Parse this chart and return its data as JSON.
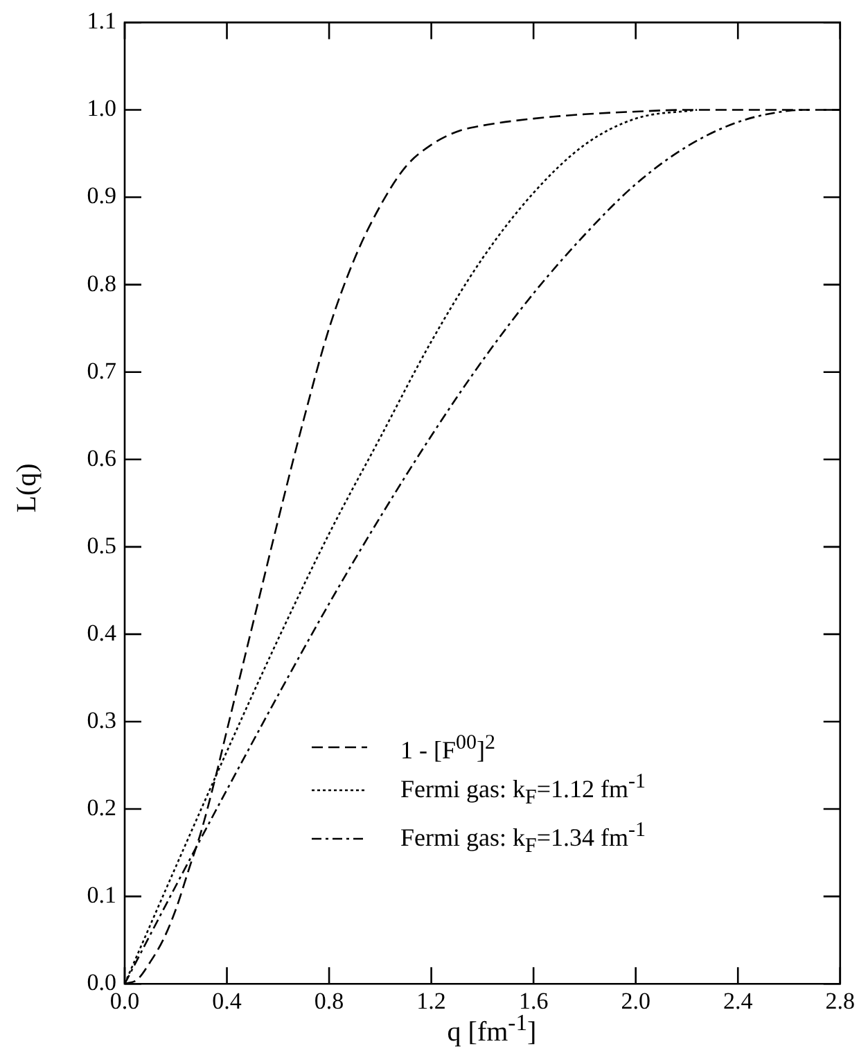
{
  "chart_data": {
    "type": "line",
    "xlabel": "q [fm$^{-1}$]",
    "ylabel": "L(q)",
    "xlim": [
      0,
      2.8
    ],
    "xticks": [
      {
        "value": 0,
        "label": "0.0"
      },
      0.4,
      0.8,
      1.2,
      1.6,
      {
        "value": 2,
        "label": "2.0"
      },
      2.4,
      2.8
    ],
    "ylim": [
      0,
      1.1
    ],
    "yticks": [
      {
        "value": 0,
        "label": "0.0"
      },
      0.1,
      0.2,
      0.3,
      0.4,
      0.5,
      0.6,
      0.7,
      0.8,
      0.9,
      {
        "value": 1,
        "label": "1.0"
      },
      1.1
    ],
    "grid": false,
    "legend": "bottom right",
    "marker": "none",
    "series": [
      {
        "name": "1 - [F$^{00}$]$^{2}$",
        "color": "#000000",
        "line_style": "dashed",
        "x": [
          0,
          0.05,
          0.1,
          0.15,
          0.2,
          0.25,
          0.3,
          0.35,
          0.4,
          0.5,
          0.6,
          0.7,
          0.8,
          0.9,
          1.0,
          1.1,
          1.2,
          1.3,
          1.4,
          1.6,
          1.8,
          2.0,
          2.2,
          2.8
        ],
        "values": [
          0,
          0.005,
          0.025,
          0.05,
          0.085,
          0.13,
          0.175,
          0.23,
          0.29,
          0.41,
          0.53,
          0.645,
          0.75,
          0.83,
          0.89,
          0.935,
          0.96,
          0.975,
          0.982,
          0.99,
          0.995,
          0.998,
          1.0,
          1.0
        ]
      },
      {
        "name": "Fermi gas: k$_{F}$=1.12 fm$^{-1}$",
        "color": "#000000",
        "line_style": "dotted",
        "x": [
          0,
          0.2,
          0.4,
          0.6,
          0.8,
          1.0,
          1.2,
          1.4,
          1.6,
          1.8,
          2.0,
          2.24
        ],
        "values": [
          0,
          0.134,
          0.266,
          0.394,
          0.515,
          0.625,
          0.735,
          0.83,
          0.905,
          0.96,
          0.99,
          1.0
        ]
      },
      {
        "name": "Fermi gas: k$_{F}$=1.34 fm$^{-1}$",
        "color": "#000000",
        "line_style": "dashdot",
        "x": [
          0,
          0.2,
          0.4,
          0.6,
          0.8,
          1.0,
          1.2,
          1.4,
          1.6,
          1.8,
          2.0,
          2.2,
          2.4,
          2.6,
          2.68
        ],
        "values": [
          0,
          0.112,
          0.222,
          0.33,
          0.435,
          0.534,
          0.627,
          0.713,
          0.79,
          0.857,
          0.915,
          0.958,
          0.986,
          0.999,
          1.0
        ]
      }
    ]
  }
}
